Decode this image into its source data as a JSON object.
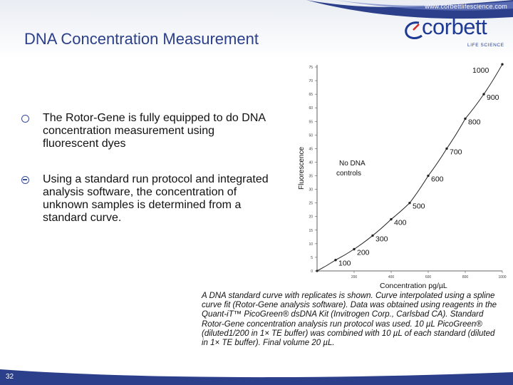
{
  "header": {
    "website": "www.corbettlifescience.com",
    "logo_text": "corbett",
    "logo_sub": "LIFE SCIENCE"
  },
  "title": "DNA Concentration Measurement",
  "bullets": [
    "The Rotor-Gene is fully equipped to do DNA concentration measurement using fluorescent dyes",
    "Using a standard run protocol and integrated analysis software, the concentration of unknown samples is determined from a standard curve."
  ],
  "chart_data": {
    "type": "scatter",
    "xlabel": "Concentration pg/µL",
    "ylabel": "Fluorescence",
    "x_ticks": [
      "200",
      "400",
      "600",
      "800",
      "1000"
    ],
    "y_ticks": [
      "0",
      "5",
      "10",
      "15",
      "20",
      "25",
      "30",
      "35",
      "40",
      "45",
      "50",
      "55",
      "60",
      "65",
      "70",
      "75"
    ],
    "xlim": [
      0,
      1000
    ],
    "ylim": [
      0,
      75
    ],
    "annotation": "No DNA controls",
    "points": [
      {
        "label": "100",
        "x": 100,
        "y": 4
      },
      {
        "label": "200",
        "x": 200,
        "y": 8
      },
      {
        "label": "300",
        "x": 300,
        "y": 13
      },
      {
        "label": "400",
        "x": 400,
        "y": 19
      },
      {
        "label": "500",
        "x": 500,
        "y": 25
      },
      {
        "label": "600",
        "x": 600,
        "y": 35
      },
      {
        "label": "700",
        "x": 700,
        "y": 45
      },
      {
        "label": "800",
        "x": 800,
        "y": 56
      },
      {
        "label": "900",
        "x": 900,
        "y": 65
      },
      {
        "label": "1000",
        "x": 1000,
        "y": 76
      }
    ],
    "curve": [
      [
        0,
        0
      ],
      [
        100,
        4
      ],
      [
        200,
        8
      ],
      [
        300,
        13
      ],
      [
        400,
        19
      ],
      [
        500,
        25
      ],
      [
        600,
        35
      ],
      [
        700,
        45
      ],
      [
        800,
        56
      ],
      [
        900,
        65
      ],
      [
        1000,
        76
      ]
    ]
  },
  "caption": "A DNA standard curve with replicates is shown. Curve interpolated using a spline curve fit (Rotor-Gene analysis software). Data was obtained using reagents in the Quant-iT™ PicoGreen® dsDNA Kit (Invitrogen Corp., Carlsbad CA). Standard Rotor-Gene concentration analysis run protocol was used. 10 µL PicoGreen® (diluted1/200 in 1× TE buffer) was combined with 10 µL of each standard (diluted in 1× TE buffer). Final volume 20 µL.",
  "footer": {
    "slide_number": "32"
  },
  "colors": {
    "title": "#2b3f8a",
    "brand": "#1f3a93",
    "bar": "#2b3f8a"
  }
}
